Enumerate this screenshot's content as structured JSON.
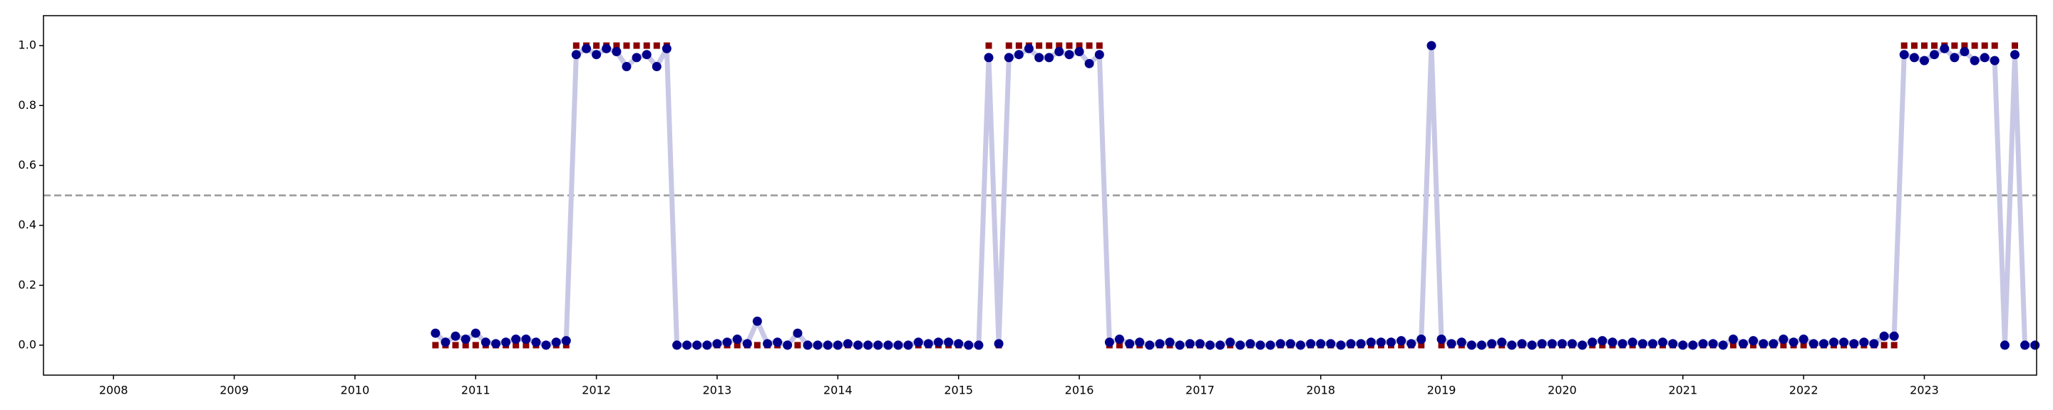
{
  "chart_data": {
    "type": "line",
    "x": [
      2010.667,
      2010.75,
      2010.833,
      2010.917,
      2011.0,
      2011.083,
      2011.167,
      2011.25,
      2011.333,
      2011.417,
      2011.5,
      2011.583,
      2011.667,
      2011.75,
      2011.833,
      2011.917,
      2012.0,
      2012.083,
      2012.167,
      2012.25,
      2012.333,
      2012.417,
      2012.5,
      2012.583,
      2012.667,
      2012.75,
      2012.833,
      2012.917,
      2013.0,
      2013.083,
      2013.167,
      2013.25,
      2013.333,
      2013.417,
      2013.5,
      2013.583,
      2013.667,
      2013.75,
      2013.833,
      2013.917,
      2014.0,
      2014.083,
      2014.167,
      2014.25,
      2014.333,
      2014.417,
      2014.5,
      2014.583,
      2014.667,
      2014.75,
      2014.833,
      2014.917,
      2015.0,
      2015.083,
      2015.167,
      2015.25,
      2015.333,
      2015.417,
      2015.5,
      2015.583,
      2015.667,
      2015.75,
      2015.833,
      2015.917,
      2016.0,
      2016.083,
      2016.167,
      2016.25,
      2016.333,
      2016.417,
      2016.5,
      2016.583,
      2016.667,
      2016.75,
      2016.833,
      2016.917,
      2017.0,
      2017.083,
      2017.167,
      2017.25,
      2017.333,
      2017.417,
      2017.5,
      2017.583,
      2017.667,
      2017.75,
      2017.833,
      2017.917,
      2018.0,
      2018.083,
      2018.167,
      2018.25,
      2018.333,
      2018.417,
      2018.5,
      2018.583,
      2018.667,
      2018.75,
      2018.833,
      2018.917,
      2019.0,
      2019.083,
      2019.167,
      2019.25,
      2019.333,
      2019.417,
      2019.5,
      2019.583,
      2019.667,
      2019.75,
      2019.833,
      2019.917,
      2020.0,
      2020.083,
      2020.167,
      2020.25,
      2020.333,
      2020.417,
      2020.5,
      2020.583,
      2020.667,
      2020.75,
      2020.833,
      2020.917,
      2021.0,
      2021.083,
      2021.167,
      2021.25,
      2021.333,
      2021.417,
      2021.5,
      2021.583,
      2021.667,
      2021.75,
      2021.833,
      2021.917,
      2022.0,
      2022.083,
      2022.167,
      2022.25,
      2022.333,
      2022.417,
      2022.5,
      2022.583,
      2022.667,
      2022.75,
      2022.833,
      2022.917,
      2023.0,
      2023.083,
      2023.167,
      2023.25,
      2023.333,
      2023.417,
      2023.5,
      2023.583,
      2023.667,
      2023.75,
      2023.833,
      2023.917
    ],
    "series": [
      {
        "color": "#00008b",
        "line_color": "#c8c8e6",
        "values": [
          0.04,
          0.01,
          0.03,
          0.02,
          0.04,
          0.01,
          0.005,
          0.01,
          0.02,
          0.02,
          0.01,
          0.0,
          0.01,
          0.015,
          0.97,
          0.99,
          0.97,
          0.99,
          0.98,
          0.93,
          0.96,
          0.97,
          0.93,
          0.99,
          0.0,
          0.0,
          0.0,
          0.0,
          0.005,
          0.01,
          0.02,
          0.005,
          0.08,
          0.005,
          0.01,
          0.0,
          0.04,
          0.0,
          0.0,
          0.0,
          0.0,
          0.005,
          0.0,
          0.0,
          0.0,
          0.0,
          0.0,
          0.0,
          0.01,
          0.005,
          0.01,
          0.01,
          0.005,
          0.0,
          0.0,
          0.96,
          0.005,
          0.96,
          0.97,
          0.99,
          0.96,
          0.96,
          0.98,
          0.97,
          0.98,
          0.94,
          0.97,
          0.01,
          0.02,
          0.005,
          0.01,
          0.0,
          0.005,
          0.01,
          0.0,
          0.005,
          0.005,
          0.0,
          0.0,
          0.01,
          0.0,
          0.005,
          0.0,
          0.0,
          0.005,
          0.005,
          0.0,
          0.005,
          0.005,
          0.005,
          0.0,
          0.005,
          0.005,
          0.01,
          0.01,
          0.01,
          0.015,
          0.005,
          0.02,
          1.0,
          0.02,
          0.005,
          0.01,
          0.0,
          0.0,
          0.005,
          0.01,
          0.0,
          0.005,
          0.0,
          0.005,
          0.005,
          0.005,
          0.005,
          0.0,
          0.01,
          0.015,
          0.01,
          0.005,
          0.01,
          0.005,
          0.005,
          0.01,
          0.005,
          0.0,
          0.0,
          0.005,
          0.005,
          0.0,
          0.02,
          0.005,
          0.015,
          0.005,
          0.005,
          0.02,
          0.01,
          0.02,
          0.005,
          0.005,
          0.01,
          0.01,
          0.005,
          0.01,
          0.005,
          0.03,
          0.03,
          0.97,
          0.96,
          0.95,
          0.97,
          0.99,
          0.96,
          0.98,
          0.95,
          0.96,
          0.95,
          0.0,
          0.97,
          0.0,
          0.0
        ]
      },
      {
        "color": "#8b0000",
        "marker": "square",
        "values": [
          0,
          0,
          0,
          0,
          0,
          0,
          0,
          0,
          0,
          0,
          0,
          0,
          0,
          0,
          1,
          1,
          1,
          1,
          1,
          1,
          1,
          1,
          1,
          1,
          0,
          0,
          0,
          0,
          0,
          0,
          0,
          0,
          0,
          0,
          0,
          0,
          0,
          0,
          0,
          0,
          0,
          0,
          0,
          0,
          0,
          0,
          0,
          0,
          0,
          0,
          0,
          0,
          0,
          0,
          0,
          1,
          0,
          1,
          1,
          1,
          1,
          1,
          1,
          1,
          1,
          1,
          1,
          0,
          0,
          0,
          0,
          0,
          0,
          0,
          0,
          0,
          0,
          0,
          0,
          0,
          0,
          0,
          0,
          0,
          0,
          0,
          0,
          0,
          0,
          0,
          0,
          0,
          0,
          0,
          0,
          0,
          0,
          0,
          0,
          1,
          0,
          0,
          0,
          0,
          0,
          0,
          0,
          0,
          0,
          0,
          0,
          0,
          0,
          0,
          0,
          0,
          0,
          0,
          0,
          0,
          0,
          0,
          0,
          0,
          0,
          0,
          0,
          0,
          0,
          0,
          0,
          0,
          0,
          0,
          0,
          0,
          0,
          0,
          0,
          0,
          0,
          0,
          0,
          0,
          0,
          0,
          1,
          1,
          1,
          1,
          1,
          1,
          1,
          1,
          1,
          1,
          0,
          1,
          0,
          0
        ]
      }
    ],
    "hline": {
      "value": 0.5,
      "color": "#999999"
    },
    "xlim": [
      2007.42,
      2023.93
    ],
    "xticks": [
      2008,
      2009,
      2010,
      2011,
      2012,
      2013,
      2014,
      2015,
      2016,
      2017,
      2018,
      2019,
      2020,
      2021,
      2022,
      2023
    ],
    "ylim": [
      -0.1,
      1.1
    ],
    "yticks": [
      {
        "value": 0,
        "label": "0.0"
      },
      0.2,
      0.4,
      0.6,
      0.8,
      {
        "value": 1,
        "label": "1.0"
      }
    ]
  }
}
